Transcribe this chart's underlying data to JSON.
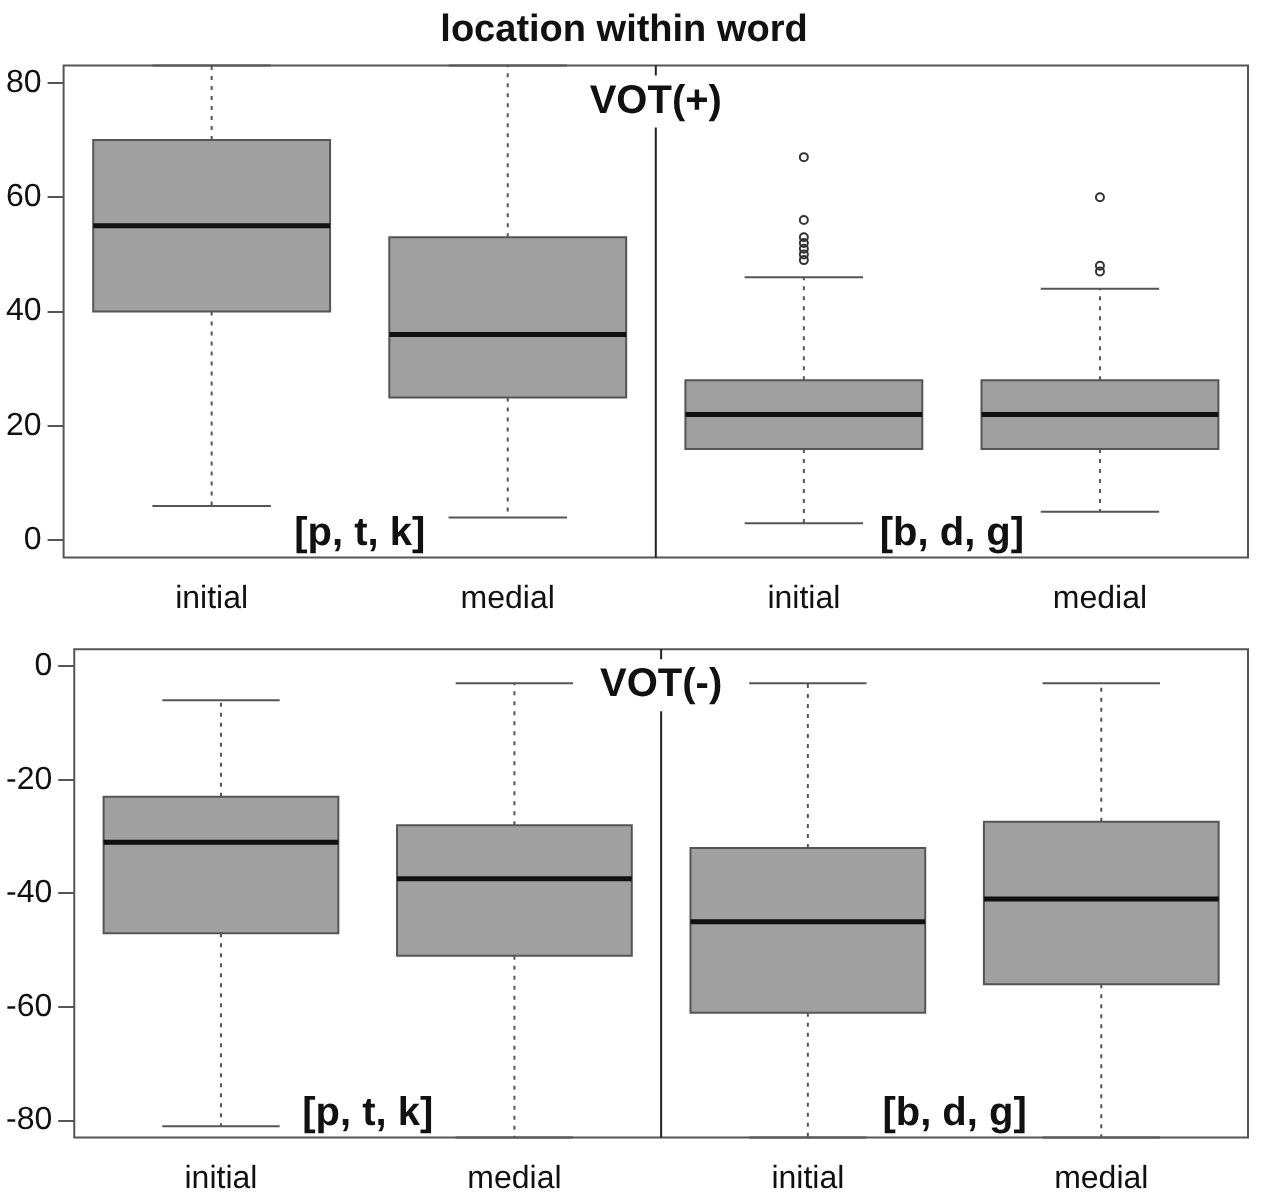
{
  "chart_data": [
    {
      "type": "box",
      "title": "location within word",
      "categories": [
        "initial",
        "medial",
        "initial",
        "medial"
      ],
      "color": "#a0a0a0",
      "ylim": [
        -3,
        83
      ],
      "yticks": [
        0,
        20,
        40,
        60,
        80
      ],
      "grid": false,
      "annotations": [
        "VOT(+)",
        "[p, t, k]",
        "[b, d, g]"
      ],
      "boxes": [
        {
          "low": 6,
          "q1": 40,
          "median": 55,
          "q3": 70,
          "high": 83
        },
        {
          "low": 4,
          "q1": 25,
          "median": 36,
          "q3": 53,
          "high": 83
        },
        {
          "low": 3,
          "q1": 16,
          "median": 22,
          "q3": 28,
          "high": 46,
          "outliers": [
            67,
            56,
            53,
            52,
            51,
            50,
            49
          ]
        },
        {
          "low": 5,
          "q1": 16,
          "median": 22,
          "q3": 28,
          "high": 44,
          "outliers": [
            60,
            48,
            47
          ]
        }
      ]
    },
    {
      "type": "box",
      "categories": [
        "initial",
        "medial",
        "initial",
        "medial"
      ],
      "color": "#a0a0a0",
      "ylim": [
        -83,
        3
      ],
      "yticks": [
        -80,
        -60,
        -40,
        -20,
        0
      ],
      "grid": false,
      "annotations": [
        "VOT(-)",
        "[p, t, k]",
        "[b, d, g]"
      ],
      "boxes": [
        {
          "low": -81,
          "q1": -47,
          "median": -31,
          "q3": -23,
          "high": -6
        },
        {
          "low": -83,
          "q1": -51,
          "median": -37.4,
          "q3": -28,
          "high": -3
        },
        {
          "low": -83,
          "q1": -61,
          "median": -45,
          "q3": -32,
          "high": -3
        },
        {
          "low": -83,
          "q1": -56,
          "median": -41,
          "q3": -27.4,
          "high": -3
        }
      ]
    }
  ]
}
